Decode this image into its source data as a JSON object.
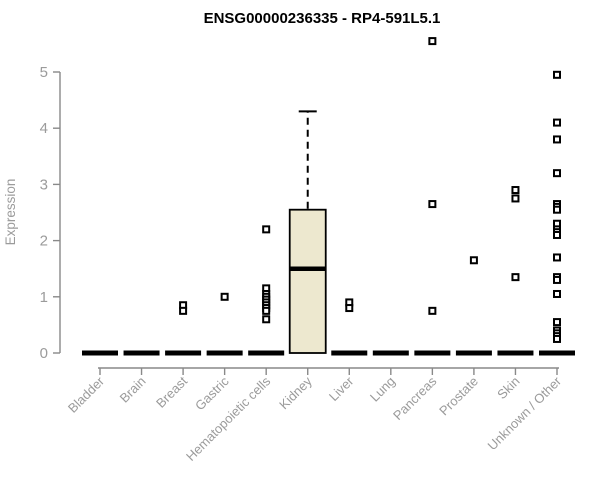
{
  "figure": {
    "title": "ENSG00000236335 - RP4-591L5.1",
    "ylabel": "Expression"
  },
  "chart_data": {
    "type": "boxplot",
    "title": "ENSG00000236335 - RP4-591L5.1",
    "xlabel": "",
    "ylabel": "Expression",
    "ylim": [
      0,
      5
    ],
    "yticks": [
      0,
      1,
      2,
      3,
      4,
      5
    ],
    "grid": false,
    "legend": "none",
    "categories": [
      "Bladder",
      "Brain",
      "Breast",
      "Gastric",
      "Hematopoietic cells",
      "Kidney",
      "Liver",
      "Lung",
      "Pancreas",
      "Prostate",
      "Skin",
      "Unknown / Other"
    ],
    "boxes": [
      {
        "category": "Bladder",
        "q1": 0,
        "median": 0,
        "q3": 0,
        "whisker_low": 0,
        "whisker_high": 0,
        "outliers": []
      },
      {
        "category": "Brain",
        "q1": 0,
        "median": 0,
        "q3": 0,
        "whisker_low": 0,
        "whisker_high": 0,
        "outliers": []
      },
      {
        "category": "Breast",
        "q1": 0,
        "median": 0,
        "q3": 0,
        "whisker_low": 0,
        "whisker_high": 0,
        "outliers": [
          0.85,
          0.75
        ]
      },
      {
        "category": "Gastric",
        "q1": 0,
        "median": 0,
        "q3": 0,
        "whisker_low": 0,
        "whisker_high": 0,
        "outliers": [
          1.0
        ]
      },
      {
        "category": "Hematopoietic cells",
        "q1": 0,
        "median": 0,
        "q3": 0,
        "whisker_low": 0,
        "whisker_high": 0,
        "outliers": [
          2.2,
          1.15,
          1.05,
          1.0,
          0.95,
          0.9,
          0.85,
          0.8,
          0.75,
          0.6
        ]
      },
      {
        "category": "Kidney",
        "q1": 0,
        "median": 1.5,
        "q3": 2.55,
        "whisker_low": 0,
        "whisker_high": 4.3,
        "outliers": []
      },
      {
        "category": "Liver",
        "q1": 0,
        "median": 0,
        "q3": 0,
        "whisker_low": 0,
        "whisker_high": 0,
        "outliers": [
          0.9,
          0.8
        ]
      },
      {
        "category": "Lung",
        "q1": 0,
        "median": 0,
        "q3": 0,
        "whisker_low": 0,
        "whisker_high": 0,
        "outliers": []
      },
      {
        "category": "Pancreas",
        "q1": 0,
        "median": 0,
        "q3": 0,
        "whisker_low": 0,
        "whisker_high": 0,
        "outliers": [
          5.55,
          2.65,
          0.75
        ]
      },
      {
        "category": "Prostate",
        "q1": 0,
        "median": 0,
        "q3": 0,
        "whisker_low": 0,
        "whisker_high": 0,
        "outliers": [
          1.65
        ]
      },
      {
        "category": "Skin",
        "q1": 0,
        "median": 0,
        "q3": 0,
        "whisker_low": 0,
        "whisker_high": 0,
        "outliers": [
          2.9,
          2.75,
          1.35
        ]
      },
      {
        "category": "Unknown / Other",
        "q1": 0,
        "median": 0,
        "q3": 0,
        "whisker_low": 0,
        "whisker_high": 0,
        "outliers": [
          4.95,
          4.1,
          3.8,
          3.2,
          2.65,
          2.6,
          2.55,
          2.3,
          2.2,
          2.15,
          2.1,
          1.7,
          1.35,
          1.3,
          1.05,
          0.55,
          0.4,
          0.35,
          0.3,
          0.25
        ]
      }
    ],
    "colors": {
      "box_fill": "#ede8cf",
      "box_stroke": "#000000",
      "median": "#000000",
      "whisker": "#000000",
      "axis": "#898989",
      "tick_label": "#9b9b9b",
      "title": "#000000",
      "marker_fill": "#ffffff",
      "marker_stroke": "#000000",
      "background": "#ffffff"
    }
  }
}
